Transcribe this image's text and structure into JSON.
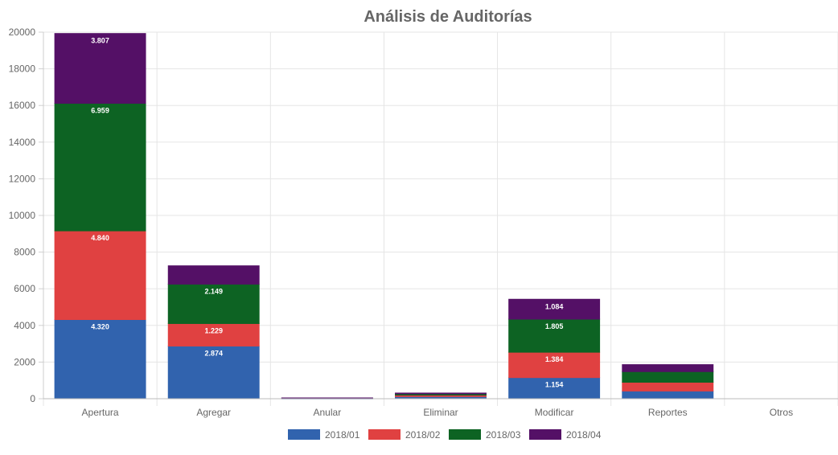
{
  "chart_data": {
    "type": "bar",
    "stacked": true,
    "title": "Análisis de Auditorías",
    "xlabel": "",
    "ylabel": "",
    "ylim": [
      0,
      20000
    ],
    "yticks": [
      0,
      2000,
      4000,
      6000,
      8000,
      10000,
      12000,
      14000,
      16000,
      18000,
      20000
    ],
    "grid": true,
    "legend_position": "bottom",
    "categories": [
      "Apertura",
      "Agregar",
      "Anular",
      "Eliminar",
      "Modificar",
      "Reportes",
      "Otros"
    ],
    "series": [
      {
        "name": "2018/01",
        "color": "#3163ae",
        "values": [
          4320,
          2874,
          15,
          120,
          1154,
          420,
          0
        ],
        "labels": [
          "4.320",
          "2.874",
          "",
          "",
          "1.154",
          "",
          ""
        ]
      },
      {
        "name": "2018/02",
        "color": "#e04141",
        "values": [
          4840,
          1229,
          20,
          80,
          1384,
          480,
          0
        ],
        "labels": [
          "4.840",
          "1.229",
          "",
          "",
          "1.384",
          "",
          ""
        ]
      },
      {
        "name": "2018/03",
        "color": "#0d6323",
        "values": [
          6959,
          2149,
          5,
          70,
          1805,
          580,
          0
        ],
        "labels": [
          "6.959",
          "2.149",
          "",
          "",
          "1.805",
          "",
          ""
        ]
      },
      {
        "name": "2018/04",
        "color": "#541066",
        "values": [
          3807,
          1000,
          5,
          40,
          1084,
          380,
          0
        ],
        "labels": [
          "3.807",
          "",
          "",
          "",
          "1.084",
          "",
          ""
        ]
      }
    ]
  }
}
